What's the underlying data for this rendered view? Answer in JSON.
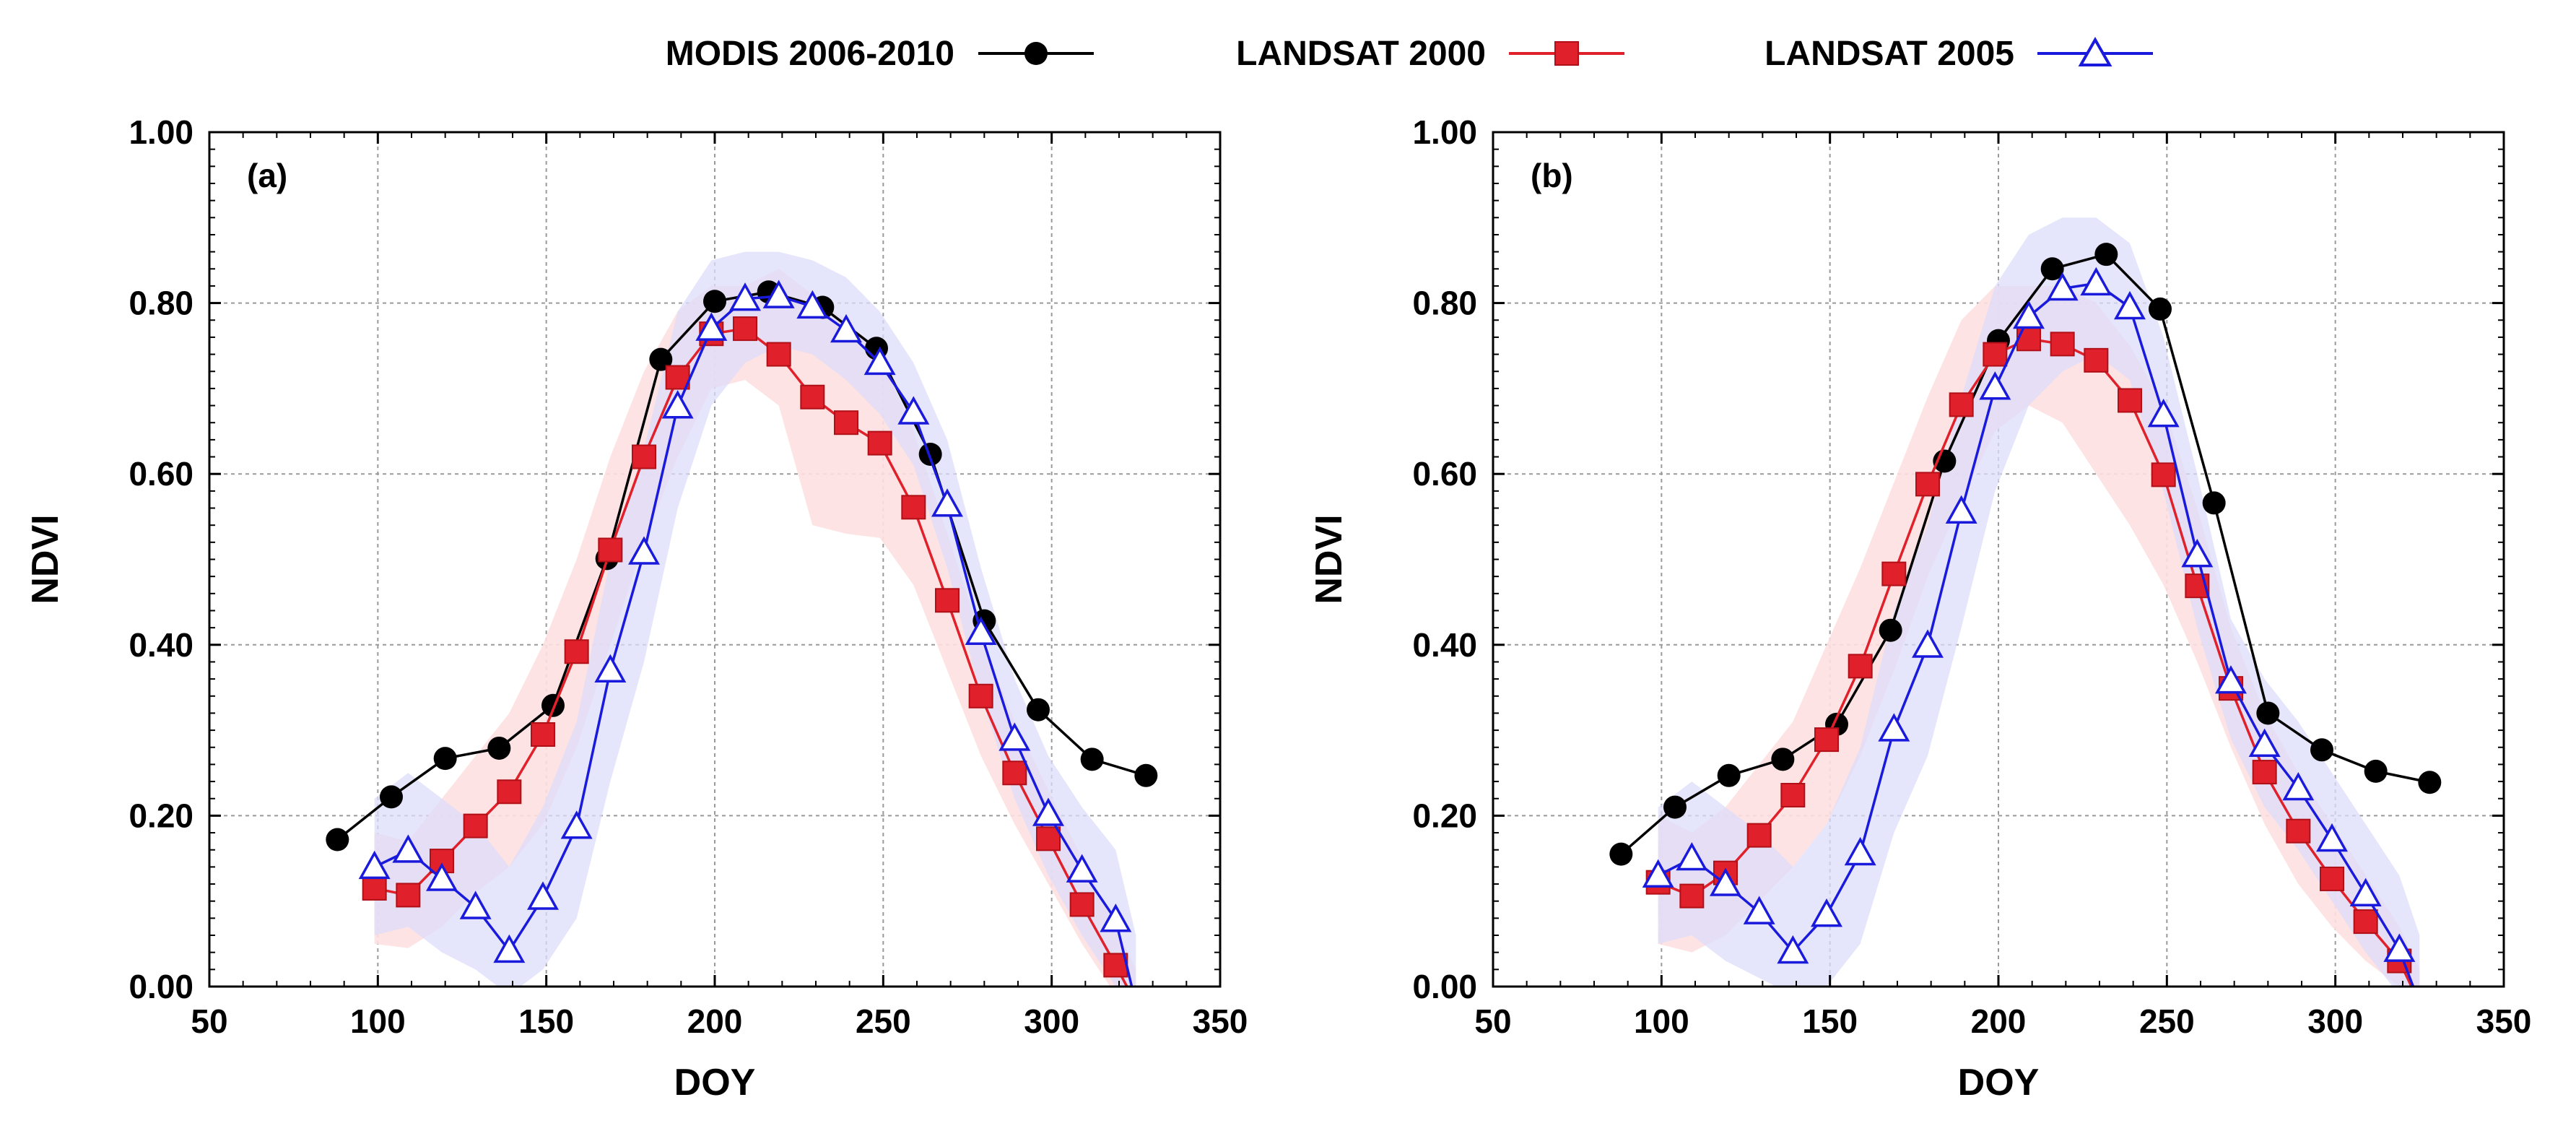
{
  "legend": {
    "modis": "MODIS 2006-2010",
    "l2000": "LANDSAT 2000",
    "l2005": "LANDSAT 2005"
  },
  "colors": {
    "modis": "#000000",
    "l2000": "#e0202a",
    "l2005": "#1a1adc",
    "band2000": "#fde0e0",
    "band2005": "#dcdcfa"
  },
  "chart_data": [
    {
      "type": "line",
      "panel_label": "(a)",
      "xlabel": "DOY",
      "ylabel": "NDVI",
      "xlim": [
        50,
        350
      ],
      "ylim": [
        0,
        1
      ],
      "xticks": [
        50,
        100,
        150,
        200,
        250,
        300,
        350
      ],
      "xtick_labels": [
        "50",
        "100",
        "150",
        "200",
        "250",
        "300",
        "350"
      ],
      "yticks": [
        0,
        0.2,
        0.4,
        0.6,
        0.8,
        1.0
      ],
      "ytick_labels": [
        "0.00",
        "0.20",
        "0.40",
        "0.60",
        "0.80",
        "1.00"
      ],
      "grid": true,
      "series": [
        {
          "name": "MODIS 2006-2010",
          "key": "modis",
          "marker": "circle",
          "x": [
            88,
            104,
            120,
            136,
            152,
            168,
            184,
            200,
            216,
            232,
            248,
            264,
            280,
            296,
            312,
            328
          ],
          "y": [
            0.172,
            0.222,
            0.267,
            0.279,
            0.329,
            0.501,
            0.734,
            0.802,
            0.813,
            0.795,
            0.747,
            0.623,
            0.428,
            0.324,
            0.266,
            0.247
          ]
        },
        {
          "name": "LANDSAT 2000",
          "key": "l2000",
          "marker": "square",
          "x": [
            99,
            109,
            119,
            129,
            139,
            149,
            159,
            169,
            179,
            189,
            199,
            209,
            219,
            229,
            239,
            249,
            259,
            269,
            279,
            289,
            299,
            309,
            319,
            325
          ],
          "y": [
            0.115,
            0.107,
            0.147,
            0.188,
            0.228,
            0.295,
            0.392,
            0.511,
            0.62,
            0.713,
            0.764,
            0.77,
            0.74,
            0.69,
            0.66,
            0.636,
            0.561,
            0.452,
            0.34,
            0.25,
            0.173,
            0.096,
            0.025,
            -0.02
          ],
          "band_lower": [
            0.05,
            0.045,
            0.07,
            0.11,
            0.14,
            0.19,
            0.28,
            0.4,
            0.52,
            0.62,
            0.7,
            0.71,
            0.68,
            0.54,
            0.53,
            0.525,
            0.47,
            0.37,
            0.27,
            0.19,
            0.12,
            0.05,
            -0.01,
            -0.03
          ],
          "band_upper": [
            0.18,
            0.17,
            0.22,
            0.27,
            0.32,
            0.4,
            0.5,
            0.62,
            0.72,
            0.79,
            0.82,
            0.82,
            0.84,
            0.81,
            0.78,
            0.74,
            0.65,
            0.53,
            0.41,
            0.31,
            0.23,
            0.15,
            0.07,
            0.02
          ]
        },
        {
          "name": "LANDSAT 2005",
          "key": "l2005",
          "marker": "triangle",
          "x": [
            99,
            109,
            119,
            129,
            139,
            149,
            159,
            169,
            179,
            189,
            199,
            209,
            219,
            229,
            239,
            249,
            259,
            269,
            279,
            289,
            299,
            309,
            319,
            325
          ],
          "y": [
            0.14,
            0.159,
            0.126,
            0.093,
            0.042,
            0.104,
            0.187,
            0.37,
            0.508,
            0.679,
            0.77,
            0.805,
            0.808,
            0.796,
            0.768,
            0.73,
            0.672,
            0.564,
            0.414,
            0.29,
            0.202,
            0.136,
            0.078,
            -0.02
          ],
          "band_lower": [
            0.06,
            0.07,
            0.04,
            0.02,
            -0.01,
            0.02,
            0.08,
            0.24,
            0.38,
            0.56,
            0.68,
            0.73,
            0.75,
            0.74,
            0.71,
            0.67,
            0.61,
            0.49,
            0.34,
            0.22,
            0.13,
            0.06,
            0.0,
            -0.03
          ],
          "band_upper": [
            0.22,
            0.25,
            0.22,
            0.19,
            0.14,
            0.21,
            0.31,
            0.5,
            0.63,
            0.79,
            0.85,
            0.86,
            0.86,
            0.85,
            0.83,
            0.79,
            0.73,
            0.64,
            0.49,
            0.36,
            0.27,
            0.21,
            0.16,
            0.06
          ]
        }
      ]
    },
    {
      "type": "line",
      "panel_label": "(b)",
      "xlabel": "DOY",
      "ylabel": "NDVI",
      "xlim": [
        50,
        350
      ],
      "ylim": [
        0,
        1
      ],
      "xticks": [
        50,
        100,
        150,
        200,
        250,
        300,
        350
      ],
      "xtick_labels": [
        "50",
        "100",
        "150",
        "200",
        "250",
        "300",
        "350"
      ],
      "yticks": [
        0,
        0.2,
        0.4,
        0.6,
        0.8,
        1.0
      ],
      "ytick_labels": [
        "0.00",
        "0.20",
        "0.40",
        "0.60",
        "0.80",
        "1.00"
      ],
      "grid": true,
      "series": [
        {
          "name": "MODIS 2006-2010",
          "key": "modis",
          "marker": "circle",
          "x": [
            88,
            104,
            120,
            136,
            152,
            168,
            184,
            200,
            216,
            232,
            248,
            264,
            280,
            296,
            312,
            328
          ],
          "y": [
            0.155,
            0.21,
            0.247,
            0.266,
            0.307,
            0.417,
            0.615,
            0.756,
            0.84,
            0.857,
            0.793,
            0.566,
            0.32,
            0.277,
            0.252,
            0.239
          ]
        },
        {
          "name": "LANDSAT 2000",
          "key": "l2000",
          "marker": "square",
          "x": [
            99,
            109,
            119,
            129,
            139,
            149,
            159,
            169,
            179,
            189,
            199,
            209,
            219,
            229,
            239,
            249,
            259,
            269,
            279,
            289,
            299,
            309,
            319,
            325
          ],
          "y": [
            0.122,
            0.106,
            0.133,
            0.177,
            0.224,
            0.289,
            0.375,
            0.483,
            0.588,
            0.681,
            0.74,
            0.758,
            0.752,
            0.733,
            0.686,
            0.599,
            0.469,
            0.349,
            0.251,
            0.182,
            0.126,
            0.076,
            0.03,
            -0.02
          ],
          "band_lower": [
            0.05,
            0.04,
            0.06,
            0.1,
            0.14,
            0.19,
            0.27,
            0.37,
            0.48,
            0.57,
            0.65,
            0.68,
            0.66,
            0.6,
            0.54,
            0.47,
            0.38,
            0.28,
            0.19,
            0.12,
            0.07,
            0.03,
            0.0,
            -0.03
          ],
          "band_upper": [
            0.2,
            0.18,
            0.21,
            0.26,
            0.31,
            0.4,
            0.49,
            0.59,
            0.69,
            0.78,
            0.82,
            0.82,
            0.82,
            0.8,
            0.75,
            0.68,
            0.56,
            0.42,
            0.32,
            0.25,
            0.19,
            0.13,
            0.07,
            0.02
          ]
        },
        {
          "name": "LANDSAT 2005",
          "key": "l2005",
          "marker": "triangle",
          "x": [
            99,
            109,
            119,
            129,
            139,
            149,
            159,
            169,
            179,
            189,
            199,
            209,
            219,
            229,
            239,
            249,
            259,
            269,
            279,
            289,
            299,
            309,
            319,
            325
          ],
          "y": [
            0.13,
            0.15,
            0.12,
            0.087,
            0.041,
            0.084,
            0.156,
            0.301,
            0.399,
            0.556,
            0.701,
            0.784,
            0.817,
            0.823,
            0.795,
            0.669,
            0.505,
            0.357,
            0.283,
            0.232,
            0.172,
            0.108,
            0.043,
            -0.02
          ],
          "band_lower": [
            0.05,
            0.06,
            0.03,
            0.01,
            -0.01,
            0.0,
            0.05,
            0.18,
            0.27,
            0.42,
            0.58,
            0.68,
            0.72,
            0.74,
            0.71,
            0.58,
            0.42,
            0.29,
            0.21,
            0.16,
            0.1,
            0.04,
            -0.01,
            -0.03
          ],
          "band_upper": [
            0.21,
            0.24,
            0.21,
            0.18,
            0.14,
            0.19,
            0.28,
            0.44,
            0.54,
            0.69,
            0.82,
            0.88,
            0.9,
            0.9,
            0.87,
            0.76,
            0.6,
            0.43,
            0.36,
            0.31,
            0.25,
            0.19,
            0.13,
            0.06
          ]
        }
      ]
    }
  ]
}
